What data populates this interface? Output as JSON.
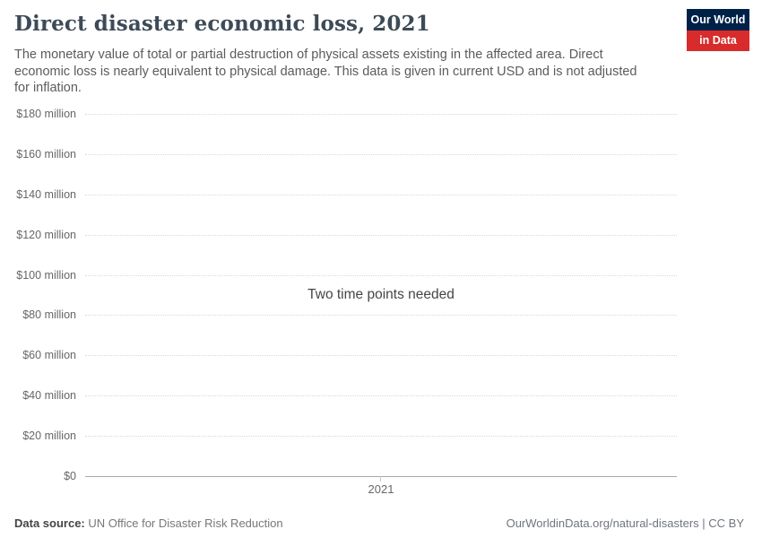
{
  "header": {
    "title": "Direct disaster economic loss, 2021",
    "subtitle": "The monetary value of total or partial destruction of physical assets existing in the affected area. Direct economic loss is nearly equivalent to physical damage. This data is given in current USD and is not adjusted for inflation.",
    "logo": {
      "line1": "Our World",
      "line2": "in Data",
      "navy": "#002147",
      "red": "#d82b2b"
    }
  },
  "chart_data": {
    "type": "line",
    "title": "Direct disaster economic loss, 2021",
    "series": [],
    "message": "Two time points needed",
    "xlabel": "",
    "ylabel": "",
    "ylim": [
      0,
      180000000
    ],
    "ytick_interval": 20000000,
    "yticks": [
      "$0",
      "$20 million",
      "$40 million",
      "$60 million",
      "$80 million",
      "$100 million",
      "$120 million",
      "$140 million",
      "$160 million",
      "$180 million"
    ],
    "xticks": [
      "2021"
    ],
    "grid": "horizontal-dotted",
    "legend": "none"
  },
  "footer": {
    "source_label": "Data source:",
    "source": "UN Office for Disaster Risk Reduction",
    "link": "OurWorldinData.org/natural-disasters | CC BY"
  }
}
